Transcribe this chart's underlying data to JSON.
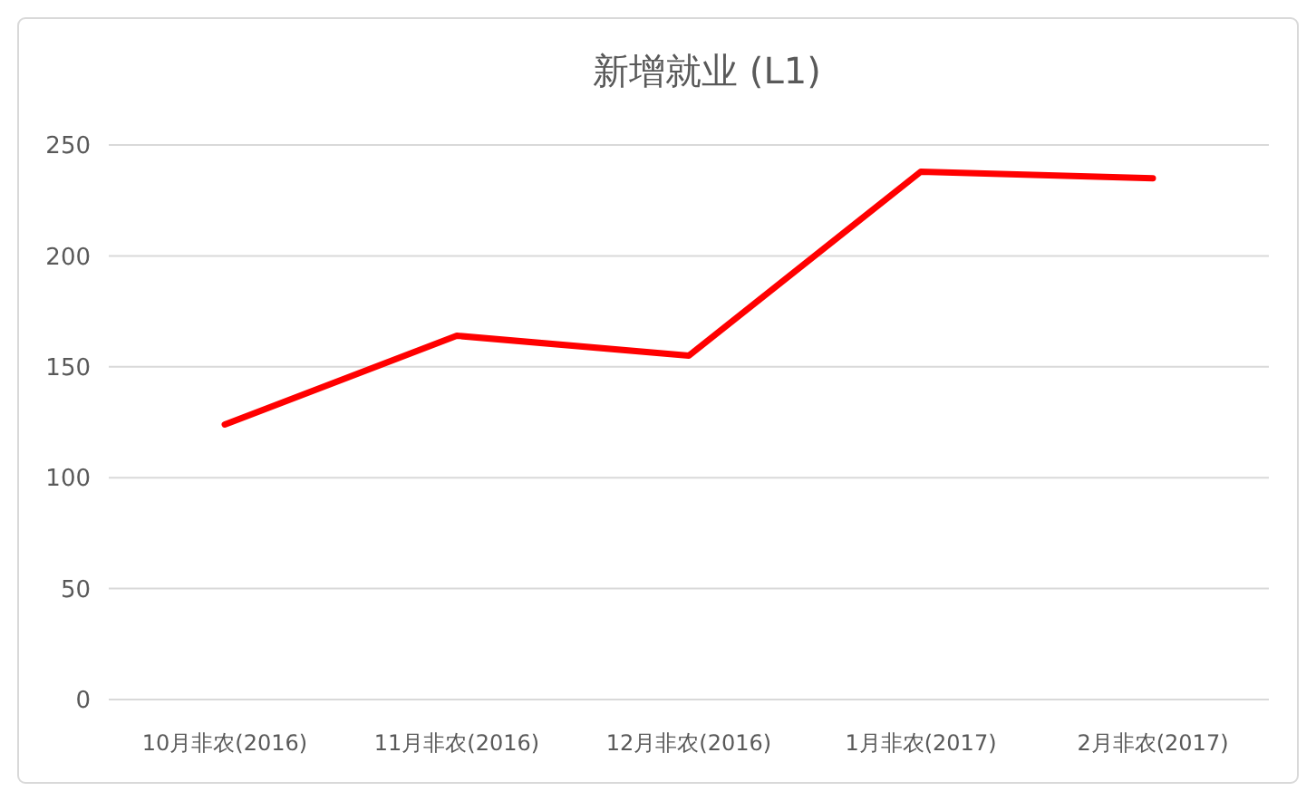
{
  "chart_data": {
    "type": "line",
    "title": "新增就业 (L1)",
    "categories": [
      "10月非农(2016)",
      "11月非农(2016)",
      "12月非农(2016)",
      "1月非农(2017)",
      "2月非农(2017)"
    ],
    "series": [
      {
        "color": "#ff0000",
        "values": [
          124,
          164,
          155,
          238,
          235
        ]
      }
    ],
    "ylim": [
      0,
      250
    ],
    "yticks": [
      0,
      50,
      100,
      150,
      200,
      250
    ],
    "grid": "y",
    "marker": "none",
    "line_style": "solid"
  }
}
